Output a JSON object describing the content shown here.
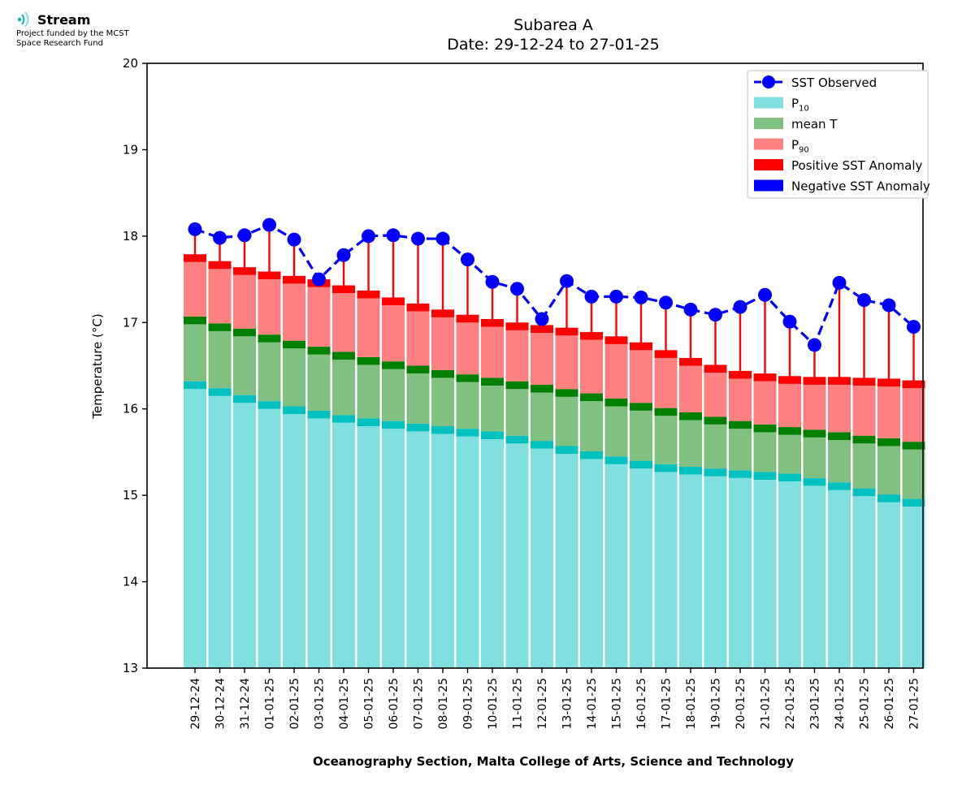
{
  "logo": {
    "name": "Stream",
    "line1": "Project funded by the MCST",
    "line2": "Space Research Fund"
  },
  "colors": {
    "p10": "#80dfdf",
    "p10_edge": "#00c0c0",
    "mean": "#80c080",
    "mean_edge": "#008000",
    "p90": "#ff8080",
    "pos_anom": "#ff0000",
    "neg_anom": "#0000ff",
    "sst": "#0000ff"
  },
  "chart_data": {
    "type": "bar",
    "title": "Subarea A",
    "subtitle": "Date: 29-12-24 to 27-01-25",
    "xlabel": "Oceanography Section, Malta College of Arts, Science and Technology",
    "ylabel": "Temperature (°C)",
    "ylim": [
      13,
      20
    ],
    "yticks": [
      "13",
      "14",
      "15",
      "16",
      "17",
      "18",
      "19",
      "20"
    ],
    "grid": false,
    "legend_position": "top-right",
    "legend": [
      {
        "label": "SST Observed",
        "sub": "",
        "kind": "line"
      },
      {
        "label": "P",
        "sub": "10",
        "kind": "p10"
      },
      {
        "label": "mean T",
        "sub": "",
        "kind": "mean"
      },
      {
        "label": "P",
        "sub": "90",
        "kind": "p90"
      },
      {
        "label": "Positive SST Anomaly",
        "sub": "",
        "kind": "pos"
      },
      {
        "label": "Negative SST Anomaly",
        "sub": "",
        "kind": "neg"
      }
    ],
    "categories": [
      "29-12-24",
      "30-12-24",
      "31-12-24",
      "01-01-25",
      "02-01-25",
      "03-01-25",
      "04-01-25",
      "05-01-25",
      "06-01-25",
      "07-01-25",
      "08-01-25",
      "09-01-25",
      "10-01-25",
      "11-01-25",
      "12-01-25",
      "13-01-25",
      "14-01-25",
      "15-01-25",
      "16-01-25",
      "17-01-25",
      "18-01-25",
      "19-01-25",
      "20-01-25",
      "21-01-25",
      "22-01-25",
      "23-01-25",
      "24-01-25",
      "25-01-25",
      "26-01-25",
      "27-01-25"
    ],
    "series": [
      {
        "name": "P10",
        "values": [
          16.32,
          16.24,
          16.16,
          16.09,
          16.03,
          15.98,
          15.93,
          15.89,
          15.86,
          15.83,
          15.8,
          15.77,
          15.74,
          15.69,
          15.63,
          15.57,
          15.51,
          15.45,
          15.4,
          15.36,
          15.33,
          15.31,
          15.29,
          15.27,
          15.25,
          15.2,
          15.15,
          15.08,
          15.01,
          14.96
        ]
      },
      {
        "name": "mean T",
        "values": [
          17.07,
          16.99,
          16.93,
          16.86,
          16.79,
          16.72,
          16.66,
          16.6,
          16.55,
          16.5,
          16.45,
          16.4,
          16.36,
          16.32,
          16.28,
          16.23,
          16.18,
          16.12,
          16.07,
          16.01,
          15.96,
          15.91,
          15.86,
          15.82,
          15.79,
          15.76,
          15.73,
          15.69,
          15.66,
          15.62
        ]
      },
      {
        "name": "P90",
        "values": [
          17.79,
          17.71,
          17.64,
          17.59,
          17.54,
          17.5,
          17.43,
          17.37,
          17.29,
          17.22,
          17.15,
          17.09,
          17.04,
          17.0,
          16.97,
          16.94,
          16.89,
          16.84,
          16.77,
          16.68,
          16.59,
          16.51,
          16.44,
          16.41,
          16.38,
          16.37,
          16.37,
          16.36,
          16.35,
          16.33
        ]
      },
      {
        "name": "SST Observed",
        "values": [
          18.08,
          17.98,
          18.01,
          18.13,
          17.96,
          17.5,
          17.78,
          18.0,
          18.01,
          17.97,
          17.97,
          17.73,
          17.47,
          17.39,
          17.04,
          17.48,
          17.3,
          17.3,
          17.29,
          17.23,
          17.15,
          17.09,
          17.18,
          17.32,
          17.01,
          16.74,
          17.46,
          17.26,
          17.2,
          16.95
        ]
      }
    ]
  }
}
